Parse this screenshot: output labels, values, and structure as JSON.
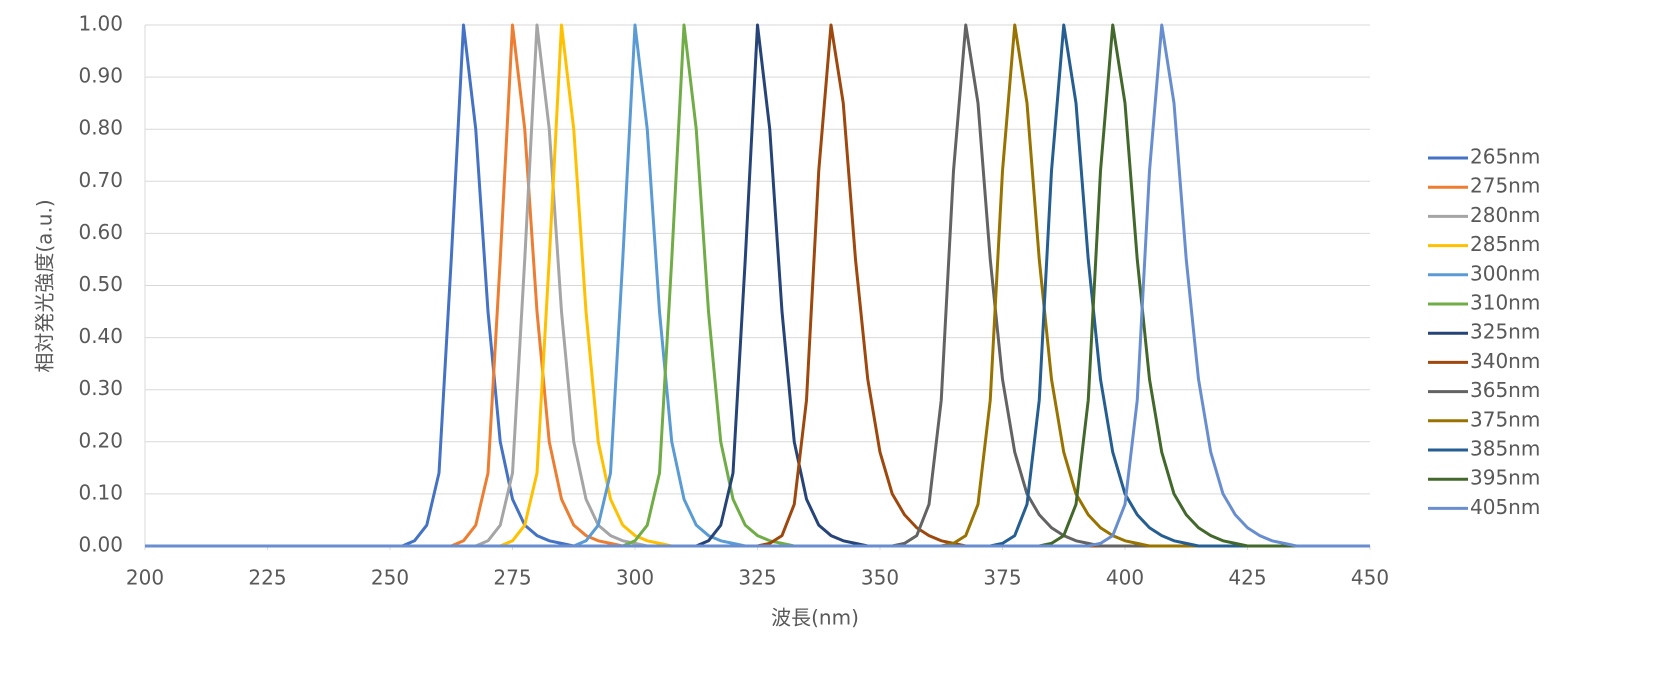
{
  "chart_data": {
    "type": "line",
    "x_label": "波長(nm)",
    "y_label": "相対発光強度(a.u.)",
    "xlim": [
      200,
      450
    ],
    "xticks": [
      200,
      225,
      250,
      275,
      300,
      325,
      350,
      375,
      400,
      425,
      450
    ],
    "ylim": [
      0,
      1
    ],
    "yticks": [
      {
        "value": 0,
        "label": "0.00"
      },
      {
        "value": 0.1,
        "label": "0.10"
      },
      {
        "value": 0.2,
        "label": "0.20"
      },
      {
        "value": 0.3,
        "label": "0.30"
      },
      {
        "value": 0.4,
        "label": "0.40"
      },
      {
        "value": 0.5,
        "label": "0.50"
      },
      {
        "value": 0.6,
        "label": "0.60"
      },
      {
        "value": 0.7,
        "label": "0.70"
      },
      {
        "value": 0.8,
        "label": "0.80"
      },
      {
        "value": 0.9,
        "label": "0.90"
      },
      {
        "value": 1,
        "label": "1.00"
      }
    ],
    "grid": true,
    "legend": "right",
    "x": [
      200,
      250,
      252.5,
      255,
      257.5,
      260,
      262.5,
      265,
      267.5,
      270,
      272.5,
      275,
      277.5,
      280,
      282.5,
      285,
      287.5,
      290,
      292.5,
      295,
      297.5,
      300,
      302.5,
      305,
      307.5,
      310,
      312.5,
      315,
      317.5,
      320,
      322.5,
      325,
      327.5,
      330,
      332.5,
      335,
      337.5,
      340,
      342.5,
      345,
      347.5,
      350,
      352.5,
      355,
      357.5,
      360,
      362.5,
      365,
      367.5,
      370,
      372.5,
      375,
      377.5,
      380,
      382.5,
      385,
      387.5,
      390,
      392.5,
      395,
      397.5,
      400,
      402.5,
      405,
      407.5,
      410,
      412.5,
      415,
      417.5,
      420,
      422.5,
      425,
      427.5,
      430,
      432.5,
      435,
      437.5,
      440,
      450
    ],
    "series": [
      {
        "name": "265nm",
        "color": "#4472c4",
        "values": [
          0,
          0,
          0,
          0.01,
          0.04,
          0.14,
          0.55,
          1,
          0.8,
          0.45,
          0.2,
          0.09,
          0.04,
          0.02,
          0.01,
          0.005,
          0,
          0,
          0,
          0,
          0,
          0,
          0,
          0,
          0,
          0,
          0,
          0,
          0,
          0,
          0,
          0,
          0,
          0,
          0,
          0,
          0,
          0,
          0,
          0,
          0,
          0,
          0,
          0,
          0,
          0,
          0,
          0,
          0,
          0,
          0,
          0,
          0,
          0,
          0,
          0,
          0,
          0,
          0,
          0,
          0,
          0,
          0,
          0,
          0,
          0,
          0,
          0,
          0,
          0,
          0,
          0,
          0,
          0,
          0,
          0,
          0,
          0,
          0
        ]
      },
      {
        "name": "275nm",
        "color": "#ed7d31",
        "values": [
          0,
          0,
          0,
          0,
          0,
          0,
          0,
          0.01,
          0.04,
          0.14,
          0.55,
          1,
          0.8,
          0.45,
          0.2,
          0.09,
          0.04,
          0.02,
          0.01,
          0.005,
          0,
          0,
          0,
          0,
          0,
          0,
          0,
          0,
          0,
          0,
          0,
          0,
          0,
          0,
          0,
          0,
          0,
          0,
          0,
          0,
          0,
          0,
          0,
          0,
          0,
          0,
          0,
          0,
          0,
          0,
          0,
          0,
          0,
          0,
          0,
          0,
          0,
          0,
          0,
          0,
          0,
          0,
          0,
          0,
          0,
          0,
          0,
          0,
          0,
          0,
          0,
          0,
          0,
          0,
          0,
          0,
          0,
          0,
          0
        ]
      },
      {
        "name": "280nm",
        "color": "#a5a5a5",
        "values": [
          0,
          0,
          0,
          0,
          0,
          0,
          0,
          0,
          0,
          0.01,
          0.04,
          0.14,
          0.55,
          1,
          0.8,
          0.45,
          0.2,
          0.09,
          0.04,
          0.02,
          0.01,
          0.005,
          0,
          0,
          0,
          0,
          0,
          0,
          0,
          0,
          0,
          0,
          0,
          0,
          0,
          0,
          0,
          0,
          0,
          0,
          0,
          0,
          0,
          0,
          0,
          0,
          0,
          0,
          0,
          0,
          0,
          0,
          0,
          0,
          0,
          0,
          0,
          0,
          0,
          0,
          0,
          0,
          0,
          0,
          0,
          0,
          0,
          0,
          0,
          0,
          0,
          0,
          0,
          0,
          0,
          0,
          0,
          0,
          0
        ]
      },
      {
        "name": "285nm",
        "color": "#ffc000",
        "values": [
          0,
          0,
          0,
          0,
          0,
          0,
          0,
          0,
          0,
          0,
          0,
          0.01,
          0.04,
          0.14,
          0.55,
          1,
          0.8,
          0.45,
          0.2,
          0.09,
          0.04,
          0.02,
          0.01,
          0.005,
          0,
          0,
          0,
          0,
          0,
          0,
          0,
          0,
          0,
          0,
          0,
          0,
          0,
          0,
          0,
          0,
          0,
          0,
          0,
          0,
          0,
          0,
          0,
          0,
          0,
          0,
          0,
          0,
          0,
          0,
          0,
          0,
          0,
          0,
          0,
          0,
          0,
          0,
          0,
          0,
          0,
          0,
          0,
          0,
          0,
          0,
          0,
          0,
          0,
          0,
          0,
          0,
          0,
          0,
          0
        ]
      },
      {
        "name": "300nm",
        "color": "#5b9bd5",
        "values": [
          0,
          0,
          0,
          0,
          0,
          0,
          0,
          0,
          0,
          0,
          0,
          0,
          0,
          0,
          0,
          0,
          0,
          0.01,
          0.04,
          0.14,
          0.55,
          1,
          0.8,
          0.45,
          0.2,
          0.09,
          0.04,
          0.02,
          0.01,
          0.005,
          0,
          0,
          0,
          0,
          0,
          0,
          0,
          0,
          0,
          0,
          0,
          0,
          0,
          0,
          0,
          0,
          0,
          0,
          0,
          0,
          0,
          0,
          0,
          0,
          0,
          0,
          0,
          0,
          0,
          0,
          0,
          0,
          0,
          0,
          0,
          0,
          0,
          0,
          0,
          0,
          0,
          0,
          0,
          0,
          0,
          0,
          0,
          0,
          0
        ]
      },
      {
        "name": "310nm",
        "color": "#70ad47",
        "values": [
          0,
          0,
          0,
          0,
          0,
          0,
          0,
          0,
          0,
          0,
          0,
          0,
          0,
          0,
          0,
          0,
          0,
          0,
          0,
          0,
          0,
          0.01,
          0.04,
          0.14,
          0.55,
          1,
          0.8,
          0.45,
          0.2,
          0.09,
          0.04,
          0.02,
          0.01,
          0.005,
          0,
          0,
          0,
          0,
          0,
          0,
          0,
          0,
          0,
          0,
          0,
          0,
          0,
          0,
          0,
          0,
          0,
          0,
          0,
          0,
          0,
          0,
          0,
          0,
          0,
          0,
          0,
          0,
          0,
          0,
          0,
          0,
          0,
          0,
          0,
          0,
          0,
          0,
          0,
          0,
          0,
          0,
          0,
          0,
          0
        ]
      },
      {
        "name": "325nm",
        "color": "#264478",
        "values": [
          0,
          0,
          0,
          0,
          0,
          0,
          0,
          0,
          0,
          0,
          0,
          0,
          0,
          0,
          0,
          0,
          0,
          0,
          0,
          0,
          0,
          0,
          0,
          0,
          0,
          0,
          0,
          0.01,
          0.04,
          0.14,
          0.55,
          1,
          0.8,
          0.45,
          0.2,
          0.09,
          0.04,
          0.02,
          0.01,
          0.005,
          0,
          0,
          0,
          0,
          0,
          0,
          0,
          0,
          0,
          0,
          0,
          0,
          0,
          0,
          0,
          0,
          0,
          0,
          0,
          0,
          0,
          0,
          0,
          0,
          0,
          0,
          0,
          0,
          0,
          0,
          0,
          0,
          0,
          0,
          0,
          0,
          0,
          0,
          0
        ]
      },
      {
        "name": "340nm",
        "color": "#9e480e",
        "values": [
          0,
          0,
          0,
          0,
          0,
          0,
          0,
          0,
          0,
          0,
          0,
          0,
          0,
          0,
          0,
          0,
          0,
          0,
          0,
          0,
          0,
          0,
          0,
          0,
          0,
          0,
          0,
          0,
          0,
          0,
          0,
          0,
          0.005,
          0.02,
          0.08,
          0.28,
          0.72,
          1,
          0.85,
          0.55,
          0.32,
          0.18,
          0.1,
          0.06,
          0.035,
          0.02,
          0.01,
          0.005,
          0,
          0,
          0,
          0,
          0,
          0,
          0,
          0,
          0,
          0,
          0,
          0,
          0,
          0,
          0,
          0,
          0,
          0,
          0,
          0,
          0,
          0,
          0,
          0,
          0,
          0,
          0,
          0,
          0,
          0,
          0
        ]
      },
      {
        "name": "365nm",
        "color": "#636363",
        "values": [
          0,
          0,
          0,
          0,
          0,
          0,
          0,
          0,
          0,
          0,
          0,
          0,
          0,
          0,
          0,
          0,
          0,
          0,
          0,
          0,
          0,
          0,
          0,
          0,
          0,
          0,
          0,
          0,
          0,
          0,
          0,
          0,
          0,
          0,
          0,
          0,
          0,
          0,
          0,
          0,
          0,
          0,
          0,
          0.005,
          0.02,
          0.08,
          0.28,
          0.72,
          1,
          0.85,
          0.55,
          0.32,
          0.18,
          0.1,
          0.06,
          0.035,
          0.02,
          0.01,
          0.005,
          0,
          0,
          0,
          0,
          0,
          0,
          0,
          0,
          0,
          0,
          0,
          0,
          0,
          0,
          0,
          0,
          0,
          0,
          0,
          0
        ]
      },
      {
        "name": "375nm",
        "color": "#997300",
        "values": [
          0,
          0,
          0,
          0,
          0,
          0,
          0,
          0,
          0,
          0,
          0,
          0,
          0,
          0,
          0,
          0,
          0,
          0,
          0,
          0,
          0,
          0,
          0,
          0,
          0,
          0,
          0,
          0,
          0,
          0,
          0,
          0,
          0,
          0,
          0,
          0,
          0,
          0,
          0,
          0,
          0,
          0,
          0,
          0,
          0,
          0,
          0,
          0.005,
          0.02,
          0.08,
          0.28,
          0.72,
          1,
          0.85,
          0.55,
          0.32,
          0.18,
          0.1,
          0.06,
          0.035,
          0.02,
          0.01,
          0.005,
          0,
          0,
          0,
          0,
          0,
          0,
          0,
          0,
          0,
          0,
          0,
          0,
          0,
          0,
          0,
          0
        ]
      },
      {
        "name": "385nm",
        "color": "#255e91",
        "values": [
          0,
          0,
          0,
          0,
          0,
          0,
          0,
          0,
          0,
          0,
          0,
          0,
          0,
          0,
          0,
          0,
          0,
          0,
          0,
          0,
          0,
          0,
          0,
          0,
          0,
          0,
          0,
          0,
          0,
          0,
          0,
          0,
          0,
          0,
          0,
          0,
          0,
          0,
          0,
          0,
          0,
          0,
          0,
          0,
          0,
          0,
          0,
          0,
          0,
          0,
          0,
          0.005,
          0.02,
          0.08,
          0.28,
          0.72,
          1,
          0.85,
          0.55,
          0.32,
          0.18,
          0.1,
          0.06,
          0.035,
          0.02,
          0.01,
          0.005,
          0,
          0,
          0,
          0,
          0,
          0,
          0,
          0,
          0,
          0,
          0,
          0
        ]
      },
      {
        "name": "395nm",
        "color": "#43682b",
        "values": [
          0,
          0,
          0,
          0,
          0,
          0,
          0,
          0,
          0,
          0,
          0,
          0,
          0,
          0,
          0,
          0,
          0,
          0,
          0,
          0,
          0,
          0,
          0,
          0,
          0,
          0,
          0,
          0,
          0,
          0,
          0,
          0,
          0,
          0,
          0,
          0,
          0,
          0,
          0,
          0,
          0,
          0,
          0,
          0,
          0,
          0,
          0,
          0,
          0,
          0,
          0,
          0,
          0,
          0,
          0,
          0.005,
          0.02,
          0.08,
          0.28,
          0.72,
          1,
          0.85,
          0.55,
          0.32,
          0.18,
          0.1,
          0.06,
          0.035,
          0.02,
          0.01,
          0.005,
          0,
          0,
          0,
          0,
          0,
          0,
          0,
          0
        ]
      },
      {
        "name": "405nm",
        "color": "#698ed0",
        "values": [
          0,
          0,
          0,
          0,
          0,
          0,
          0,
          0,
          0,
          0,
          0,
          0,
          0,
          0,
          0,
          0,
          0,
          0,
          0,
          0,
          0,
          0,
          0,
          0,
          0,
          0,
          0,
          0,
          0,
          0,
          0,
          0,
          0,
          0,
          0,
          0,
          0,
          0,
          0,
          0,
          0,
          0,
          0,
          0,
          0,
          0,
          0,
          0,
          0,
          0,
          0,
          0,
          0,
          0,
          0,
          0,
          0,
          0,
          0,
          0.005,
          0.02,
          0.08,
          0.28,
          0.72,
          1,
          0.85,
          0.55,
          0.32,
          0.18,
          0.1,
          0.06,
          0.035,
          0.02,
          0.01,
          0.005,
          0,
          0,
          0,
          0
        ]
      }
    ]
  }
}
